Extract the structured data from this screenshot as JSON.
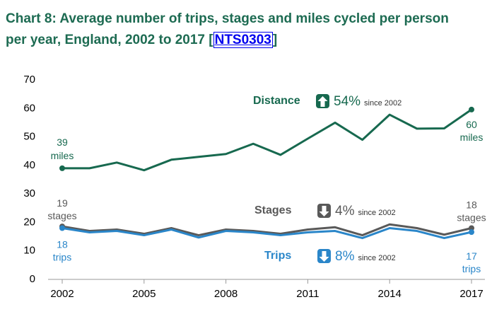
{
  "chart_data": {
    "type": "line",
    "title": "Chart 8: Average number of trips, stages and miles cycled per person per year, England, 2002 to 2017",
    "source_open": "[",
    "source_link": "NTS0303",
    "source_close": "]",
    "x": [
      2002,
      2003,
      2004,
      2005,
      2006,
      2007,
      2008,
      2009,
      2010,
      2011,
      2012,
      2013,
      2014,
      2015,
      2016,
      2017
    ],
    "xlim": [
      2002,
      2017
    ],
    "xticks": [
      2002,
      2005,
      2008,
      2011,
      2014,
      2017
    ],
    "ylim": [
      0,
      70
    ],
    "yticks": [
      0,
      10,
      20,
      30,
      40,
      50,
      60,
      70
    ],
    "series": [
      {
        "name": "Distance",
        "color": "#17694f",
        "values": [
          39,
          39,
          41,
          38.3,
          42,
          43,
          44,
          47.6,
          43.7,
          49.4,
          55,
          49,
          57.8,
          52.9,
          53,
          59.6
        ],
        "value_labels": [
          "39 miles",
          null,
          null,
          null,
          null,
          null,
          null,
          null,
          null,
          null,
          null,
          null,
          null,
          null,
          null,
          "60 miles"
        ],
        "change": {
          "direction": "up",
          "text": "54%",
          "note": "since 2002"
        }
      },
      {
        "name": "Stages",
        "color": "#595959",
        "values": [
          18.6,
          17,
          17.5,
          16,
          18,
          15.5,
          17.5,
          17,
          16,
          17.5,
          18.3,
          15.5,
          19.3,
          18,
          15.7,
          18
        ],
        "value_labels": [
          "19 stages",
          null,
          null,
          null,
          null,
          null,
          null,
          null,
          null,
          null,
          null,
          null,
          null,
          null,
          null,
          "18 stages"
        ],
        "change": {
          "direction": "down",
          "text": "4%",
          "note": "since 2002"
        }
      },
      {
        "name": "Trips",
        "color": "#2a86c9",
        "values": [
          18,
          16.5,
          17,
          15.5,
          17.5,
          14.7,
          17,
          16.5,
          15.5,
          16.5,
          17,
          14.5,
          18,
          17,
          14.5,
          16.6
        ],
        "value_labels": [
          "18 trips",
          null,
          null,
          null,
          null,
          null,
          null,
          null,
          null,
          null,
          null,
          null,
          null,
          null,
          null,
          "17 trips"
        ],
        "change": {
          "direction": "down",
          "text": "8%",
          "note": "since 2002"
        }
      }
    ]
  }
}
